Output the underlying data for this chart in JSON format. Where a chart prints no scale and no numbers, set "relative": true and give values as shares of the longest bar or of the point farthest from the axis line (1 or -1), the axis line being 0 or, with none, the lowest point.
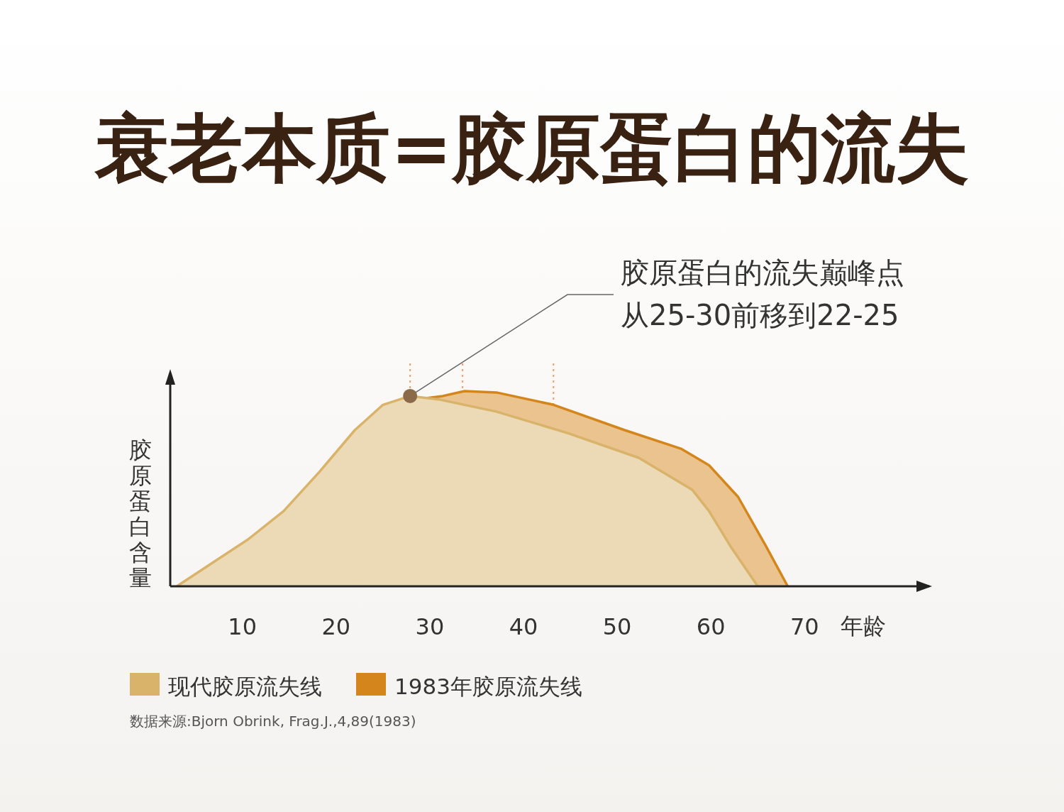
{
  "chart_data": {
    "type": "area",
    "title": "衰老本质=胶原蛋白的流失",
    "xlabel": "年龄",
    "ylabel": "胶原蛋白含量",
    "relative": true,
    "xlim": [
      2.3,
      83.3
    ],
    "xticks": [
      10,
      20,
      30,
      40,
      50,
      60,
      70
    ],
    "legend": "bottom",
    "grid": false,
    "series": [
      {
        "name": "1983年胶原流失线",
        "color": "#d4861c",
        "x": [
          29,
          31.4,
          33.7,
          37.1,
          43.2,
          50.8,
          56.8,
          59.8,
          62.9,
          65.9,
          68.2
        ],
        "values": [
          0.96,
          0.975,
          1.0,
          0.993,
          0.93,
          0.8,
          0.705,
          0.62,
          0.458,
          0.204,
          0
        ]
      },
      {
        "name": "现代胶原流失线",
        "color": "#d9b36a",
        "x": [
          3.0,
          6.8,
          10.6,
          14.4,
          18.2,
          22.0,
          25.0,
          27.9,
          31.1,
          37.1,
          44.7,
          52.3,
          58.0,
          59.8,
          62.1,
          65.0
        ],
        "values": [
          0,
          0.12,
          0.24,
          0.385,
          0.585,
          0.8,
          0.93,
          0.975,
          0.956,
          0.895,
          0.785,
          0.658,
          0.495,
          0.385,
          0.204,
          0
        ]
      }
    ],
    "ref_lines": [
      {
        "axis": "x",
        "value": 27.9,
        "color": "#e8a070",
        "line_style": "dotted"
      },
      {
        "axis": "x",
        "value": 33.5,
        "color": "#e8a070",
        "line_style": "dotted"
      },
      {
        "axis": "x",
        "value": 43.2,
        "color": "#e8a070",
        "line_style": "dotted"
      }
    ],
    "annotations": [
      {
        "text": "胶原蛋白的流失巅峰点从25-30前移到22-25",
        "x": 27.9,
        "y": 0.975
      },
      "数据来源:Bjorn Obrink, Frag.J.,4,89(1983)"
    ]
  }
}
